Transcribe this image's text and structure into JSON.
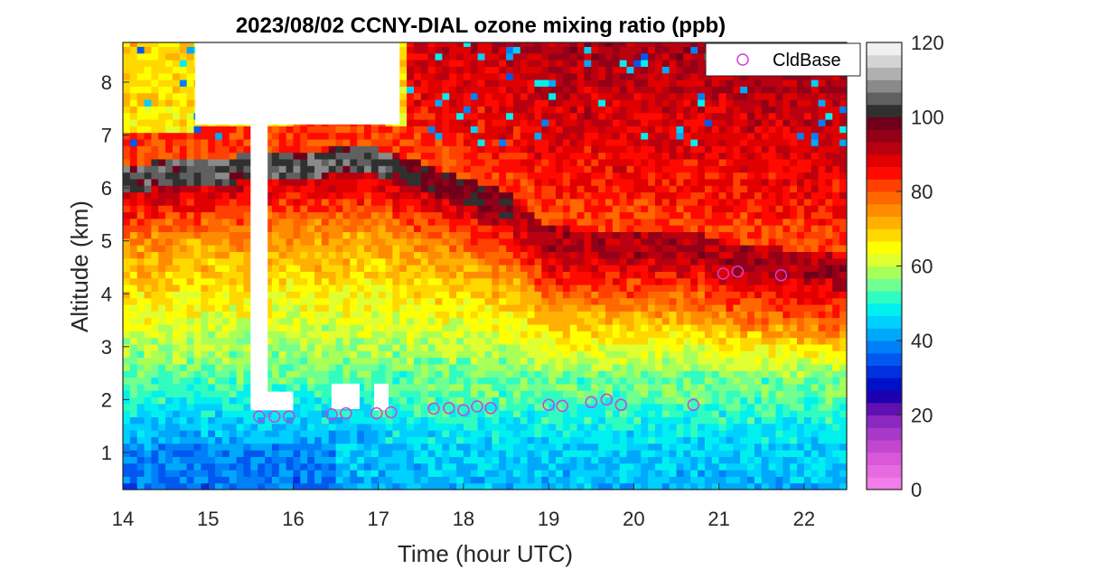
{
  "chart_data": {
    "type": "heatmap",
    "title": "2023/08/02 CCNY-DIAL ozone mixing ratio (ppb)",
    "xlabel": "Time (hour UTC)",
    "ylabel": "Altitude (km)",
    "xlim": [
      14,
      22.5
    ],
    "ylim": [
      0.3,
      8.75
    ],
    "xticks": [
      "14",
      "15",
      "16",
      "17",
      "18",
      "19",
      "20",
      "21",
      "22"
    ],
    "yticks": [
      "1",
      "2",
      "3",
      "4",
      "5",
      "6",
      "7",
      "8"
    ],
    "colorbar": {
      "limits": [
        0,
        120
      ],
      "ticks": [
        "0",
        "20",
        "40",
        "60",
        "80",
        "100",
        "120"
      ]
    },
    "legend": {
      "label": "CldBase",
      "location": "top-right",
      "marker": "circle",
      "color": "#d040d8"
    },
    "cloud_base": {
      "name": "CldBase",
      "points": [
        {
          "x": 15.6,
          "y": 1.68
        },
        {
          "x": 15.78,
          "y": 1.68
        },
        {
          "x": 15.95,
          "y": 1.68
        },
        {
          "x": 16.45,
          "y": 1.72
        },
        {
          "x": 16.62,
          "y": 1.74
        },
        {
          "x": 16.98,
          "y": 1.74
        },
        {
          "x": 17.15,
          "y": 1.76
        },
        {
          "x": 17.65,
          "y": 1.83
        },
        {
          "x": 17.83,
          "y": 1.84
        },
        {
          "x": 18.0,
          "y": 1.8
        },
        {
          "x": 18.16,
          "y": 1.87
        },
        {
          "x": 18.32,
          "y": 1.84
        },
        {
          "x": 19.0,
          "y": 1.9
        },
        {
          "x": 19.16,
          "y": 1.88
        },
        {
          "x": 19.5,
          "y": 1.95
        },
        {
          "x": 19.68,
          "y": 2.0
        },
        {
          "x": 19.85,
          "y": 1.9
        },
        {
          "x": 20.7,
          "y": 1.9
        },
        {
          "x": 21.05,
          "y": 4.38
        },
        {
          "x": 21.22,
          "y": 4.42
        },
        {
          "x": 21.73,
          "y": 4.35
        }
      ]
    },
    "profile_layers": [
      {
        "alt_km": 0.3,
        "ozone_ppb": 36
      },
      {
        "alt_km": 1.2,
        "ozone_ppb": 40
      },
      {
        "alt_km": 2.0,
        "ozone_ppb": 47
      },
      {
        "alt_km": 3.0,
        "ozone_ppb": 56
      },
      {
        "alt_km": 3.8,
        "ozone_ppb": 66
      },
      {
        "alt_km": 4.6,
        "ozone_ppb": 74
      },
      {
        "alt_km": 5.4,
        "ozone_ppb": 82
      },
      {
        "alt_km": 6.2,
        "ozone_ppb": 108
      },
      {
        "alt_km": 7.0,
        "ozone_ppb": 70
      },
      {
        "alt_km": 8.7,
        "ozone_ppb": 60
      }
    ]
  }
}
